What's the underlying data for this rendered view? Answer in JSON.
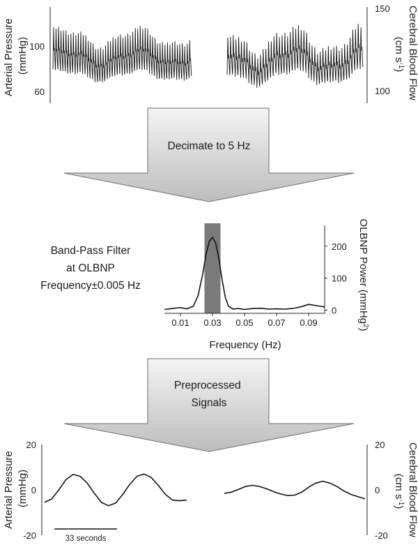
{
  "colors": {
    "arrow_fill_top": "#f4f4f4",
    "arrow_fill_bottom": "#bdbdbd",
    "arrow_stroke": "#6e6e6e",
    "trace": "#111111",
    "highlight_band": "#7a7a7a"
  },
  "steps": {
    "decimate_label": "Decimate to 5 Hz",
    "preprocessed_label_line1": "Preprocessed",
    "preprocessed_label_line2": "Signals"
  },
  "filter_text": {
    "line1": "Band-Pass Filter",
    "line2": "at OLBNP",
    "line3": "Frequency±0.005 Hz"
  },
  "scale_bar": {
    "label": "33 seconds"
  },
  "chart_data": [
    {
      "id": "raw_signals",
      "type": "line",
      "left_axis": {
        "label_line1": "Arterial Pressure",
        "label_line2": "(mmHg)",
        "ticks": [
          "100",
          "60"
        ],
        "ylim": [
          52,
          134
        ]
      },
      "right_axis": {
        "label_line1": "Cerebral Blood Flow",
        "label_line2": "(cm s",
        "label_sup": "-1",
        "label_close": ")",
        "ticks": [
          "150",
          "100"
        ],
        "ylim": [
          94,
          152
        ]
      },
      "series": [
        {
          "axis": "left",
          "x_range": [
            0,
            34
          ],
          "diastolic": 76,
          "systolic": 108,
          "beats": 56
        },
        {
          "axis": "right",
          "x_range": [
            0,
            30
          ],
          "diastolic": 110,
          "systolic": 132,
          "beats": 50
        }
      ]
    },
    {
      "id": "power_spectrum",
      "type": "line",
      "xlabel": "Frequency (Hz)",
      "ylabel": "OLBNP Power (mmHg",
      "ylabel_sup": "2",
      "ylabel_close": ")",
      "xticks": [
        "0.01",
        "0.03",
        "0.05",
        "0.07",
        "0.09"
      ],
      "xtick_values": [
        0.01,
        0.03,
        0.05,
        0.07,
        0.09
      ],
      "yticks": [
        "200",
        "100",
        "0"
      ],
      "ytick_values": [
        200,
        100,
        0
      ],
      "xlim": [
        0.0,
        0.1
      ],
      "ylim": [
        -10,
        265
      ],
      "highlight_band": [
        0.025,
        0.035
      ],
      "x": [
        0.0,
        0.005,
        0.01,
        0.014,
        0.018,
        0.021,
        0.024,
        0.026,
        0.028,
        0.03,
        0.032,
        0.034,
        0.036,
        0.038,
        0.04,
        0.043,
        0.046,
        0.05,
        0.055,
        0.06,
        0.065,
        0.07,
        0.075,
        0.08,
        0.085,
        0.09,
        0.095,
        0.1
      ],
      "y": [
        2,
        5,
        8,
        4,
        12,
        45,
        115,
        175,
        215,
        228,
        210,
        160,
        95,
        40,
        12,
        3,
        5,
        2,
        5,
        6,
        3,
        4,
        3,
        5,
        10,
        18,
        14,
        10
      ]
    },
    {
      "id": "filtered_signals",
      "type": "line",
      "left_axis": {
        "label_line1": "Arterial Pressure",
        "label_line2": "(mmHg)",
        "ticks": [
          "20",
          "0",
          "-20"
        ],
        "tick_values": [
          20,
          0,
          -20
        ],
        "ylim": [
          -20,
          20
        ]
      },
      "right_axis": {
        "label_line1": "Cerebral Blood Flow",
        "label_line2": "(cm s",
        "label_sup": "-1",
        "label_close": ")",
        "ticks": [
          "20",
          "0",
          "-20"
        ],
        "tick_values": [
          20,
          0,
          -20
        ],
        "ylim": [
          -20,
          20
        ]
      },
      "series": [
        {
          "axis": "left",
          "x": [
            0,
            5,
            10,
            15,
            20,
            25,
            30,
            35,
            40,
            45,
            50,
            55,
            60,
            65,
            70,
            75,
            80,
            85,
            90,
            95,
            100
          ],
          "y": [
            -5.5,
            -4,
            0,
            4.5,
            6.8,
            6,
            3,
            -1.5,
            -5.5,
            -7,
            -5.8,
            -2,
            2.5,
            6,
            7,
            5.5,
            2,
            -2,
            -4.5,
            -4.8,
            -4.5
          ]
        },
        {
          "axis": "right",
          "x": [
            0,
            5,
            10,
            15,
            20,
            25,
            30,
            35,
            40,
            45,
            50,
            55,
            60,
            65,
            70,
            75,
            80,
            85,
            90,
            95,
            100
          ],
          "y": [
            -1.5,
            -1,
            0.2,
            1.5,
            2,
            1.5,
            0.5,
            -0.8,
            -1.8,
            -2.5,
            -2.3,
            -1,
            1.2,
            3,
            3.8,
            3,
            1.5,
            -0.5,
            -2,
            -3,
            -4
          ]
        }
      ]
    }
  ]
}
